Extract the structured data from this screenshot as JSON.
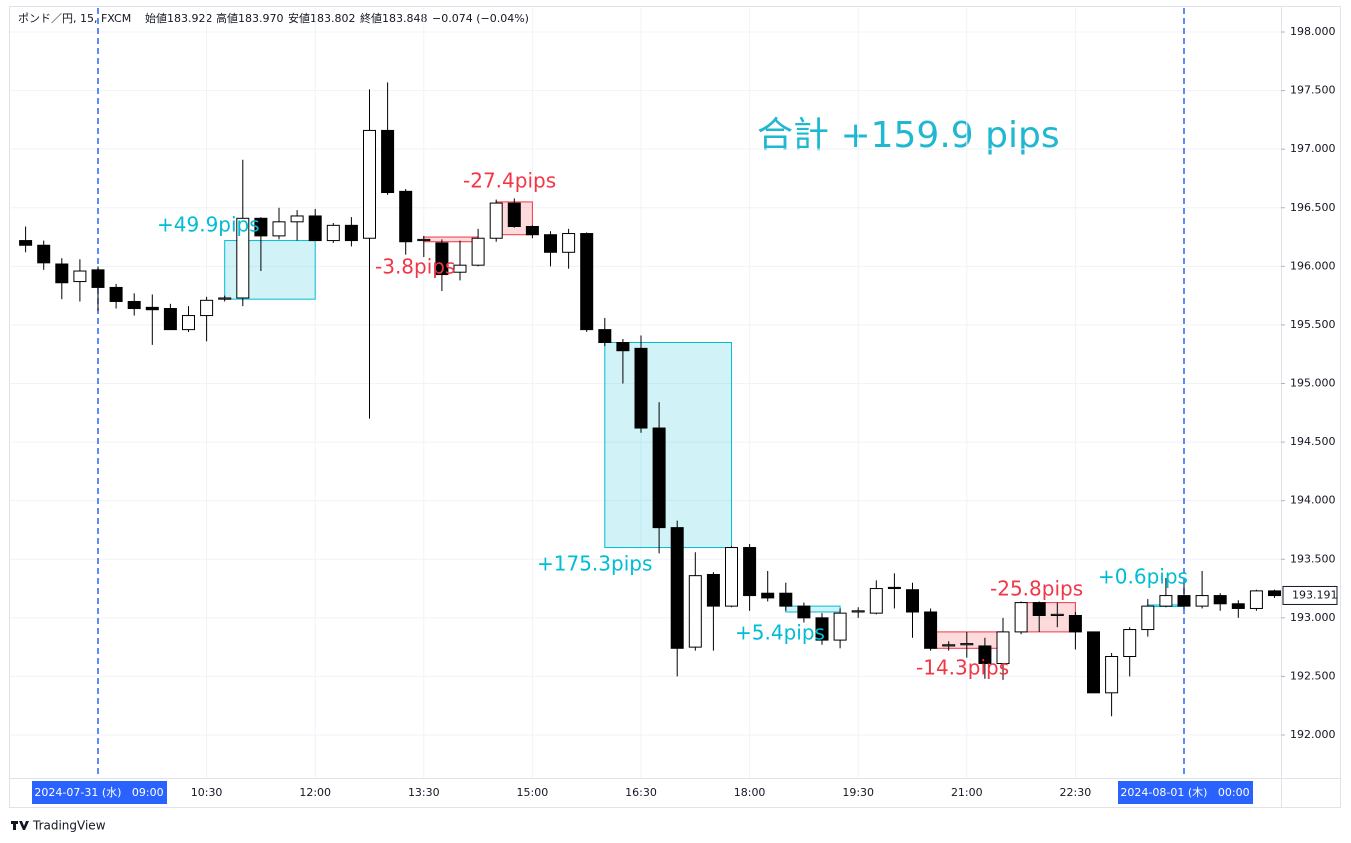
{
  "chart_data": {
    "type": "candlestick",
    "header": [
      "ポンド／円, 15, FXCM",
      "始値183.922",
      "高値183.970",
      "安値183.802",
      "終値183.848",
      "−0.074 (−0.04%)"
    ],
    "title": "合計 +159.9 pips",
    "footer": "TradingView",
    "categories": [
      null,
      null,
      null,
      null,
      "2024-07-31 (水)   09:00",
      null,
      null,
      null,
      null,
      null,
      "10:30",
      null,
      null,
      null,
      null,
      null,
      "12:00",
      null,
      null,
      null,
      null,
      null,
      "13:30",
      null,
      null,
      null,
      null,
      null,
      "15:00",
      null,
      null,
      null,
      null,
      null,
      "16:30",
      null,
      null,
      null,
      null,
      null,
      "18:00",
      null,
      null,
      null,
      null,
      null,
      "19:30",
      null,
      null,
      null,
      null,
      null,
      "21:00",
      null,
      null,
      null,
      null,
      null,
      "22:30",
      null,
      null,
      null,
      null,
      null,
      "2024-08-01 (木)   00:00",
      null,
      null,
      null,
      null,
      null
    ],
    "open": [
      196.22,
      196.18,
      196.02,
      195.87,
      195.97,
      195.82,
      195.7,
      195.65,
      195.64,
      195.46,
      195.58,
      195.72,
      195.73,
      196.41,
      196.26,
      196.38,
      196.43,
      196.22,
      196.35,
      196.24,
      197.16,
      196.64,
      196.22,
      196.2,
      195.95,
      196.01,
      196.24,
      196.54,
      196.34,
      196.27,
      196.12,
      196.28,
      195.46,
      195.35,
      195.3,
      194.62,
      193.77,
      192.75,
      193.37,
      193.1,
      193.6,
      193.21,
      193.21,
      193.1,
      193.0,
      192.81,
      193.05,
      193.04,
      193.26,
      193.24,
      193.05,
      192.76,
      192.77,
      192.76,
      192.61,
      192.88,
      193.13,
      193.02,
      193.02,
      192.88,
      192.36,
      192.67,
      192.9,
      193.1,
      193.19,
      193.1,
      193.19,
      193.12,
      193.08,
      193.23
    ],
    "high": [
      196.34,
      196.22,
      196.07,
      196.06,
      196.0,
      195.85,
      195.77,
      195.76,
      195.68,
      195.66,
      195.74,
      195.75,
      196.91,
      196.42,
      196.5,
      196.48,
      196.49,
      196.37,
      196.42,
      197.51,
      197.57,
      196.66,
      196.26,
      196.23,
      196.22,
      196.32,
      196.57,
      196.58,
      196.35,
      196.3,
      196.32,
      196.29,
      195.56,
      195.38,
      195.41,
      194.84,
      193.83,
      193.56,
      193.39,
      193.61,
      193.63,
      193.4,
      193.3,
      193.13,
      193.04,
      193.08,
      193.09,
      193.32,
      193.38,
      193.3,
      193.08,
      192.8,
      192.88,
      192.83,
      193.0,
      193.14,
      193.14,
      193.13,
      193.05,
      192.88,
      192.7,
      192.92,
      193.16,
      193.34,
      193.3,
      193.4,
      193.21,
      193.15,
      193.24,
      193.24
    ],
    "low": [
      196.12,
      195.97,
      195.72,
      195.7,
      195.62,
      195.64,
      195.58,
      195.33,
      195.46,
      195.44,
      195.36,
      195.7,
      195.66,
      195.96,
      196.23,
      196.22,
      196.22,
      196.2,
      196.17,
      194.7,
      196.61,
      196.1,
      196.08,
      195.79,
      195.88,
      196.0,
      196.21,
      196.33,
      196.24,
      196.0,
      195.98,
      195.44,
      195.32,
      195.0,
      194.58,
      193.55,
      192.5,
      192.72,
      192.72,
      193.09,
      193.06,
      193.14,
      193.06,
      192.96,
      192.77,
      192.74,
      193.0,
      193.03,
      193.08,
      192.83,
      192.72,
      192.72,
      192.66,
      192.48,
      192.47,
      192.86,
      192.88,
      192.92,
      192.73,
      192.36,
      192.16,
      192.5,
      192.84,
      193.09,
      193.08,
      193.08,
      193.06,
      193.0,
      193.06,
      193.17
    ],
    "close": [
      196.18,
      196.03,
      195.86,
      195.96,
      195.82,
      195.7,
      195.64,
      195.63,
      195.46,
      195.58,
      195.71,
      195.73,
      196.41,
      196.26,
      196.38,
      196.43,
      196.22,
      196.35,
      196.22,
      197.16,
      196.63,
      196.21,
      196.23,
      195.93,
      196.01,
      196.24,
      196.54,
      196.34,
      196.27,
      196.12,
      196.28,
      195.46,
      195.35,
      195.28,
      194.62,
      193.77,
      192.74,
      193.36,
      193.1,
      193.6,
      193.19,
      193.17,
      193.1,
      193.0,
      192.81,
      193.04,
      193.06,
      193.25,
      193.25,
      193.05,
      192.74,
      192.77,
      192.78,
      192.61,
      192.88,
      193.13,
      193.02,
      193.03,
      192.88,
      192.36,
      192.67,
      192.9,
      193.1,
      193.19,
      193.1,
      193.19,
      193.12,
      193.08,
      193.23,
      193.19
    ],
    "up_color": "#ffffff",
    "down_color": "#000000",
    "ylim": [
      191.633,
      198.205
    ],
    "yticks": [
      {
        "value": 192,
        "label": "192.000"
      },
      {
        "value": 192.5,
        "label": "192.500"
      },
      {
        "value": 193,
        "label": "193.000"
      },
      {
        "value": 193.5,
        "label": "193.500"
      },
      {
        "value": 194,
        "label": "194.000"
      },
      {
        "value": 194.5,
        "label": "194.500"
      },
      {
        "value": 195,
        "label": "195.000"
      },
      {
        "value": 195.5,
        "label": "195.500"
      },
      {
        "value": 196,
        "label": "196.000"
      },
      {
        "value": 196.5,
        "label": "196.500"
      },
      {
        "value": 197,
        "label": "197.000"
      },
      {
        "value": 197.5,
        "label": "197.500"
      },
      {
        "value": 198,
        "label": "198.000"
      }
    ],
    "last_price": {
      "value": 193.191,
      "label": "193.191"
    },
    "grid": true,
    "annotations": [
      {
        "label": "+49.9pips",
        "start": 11,
        "end": 16,
        "top": 196.22,
        "bottom": 195.72,
        "color": "#00bcd4"
      },
      {
        "label": "-3.8pips",
        "start": 22,
        "end": 25,
        "top": 196.25,
        "bottom": 196.21,
        "color": "#f23645"
      },
      {
        "label": "-27.4pips",
        "start": 26,
        "end": 28,
        "top": 196.55,
        "bottom": 196.27,
        "color": "#f23645"
      },
      {
        "label": "+175.3pips",
        "start": 32,
        "end": 39,
        "top": 195.35,
        "bottom": 193.6,
        "color": "#00bcd4"
      },
      {
        "label": "+5.4pips",
        "start": 42,
        "end": 45,
        "top": 193.1,
        "bottom": 193.05,
        "color": "#00bcd4"
      },
      {
        "label": "-14.3pips",
        "start": 50,
        "end": 54,
        "top": 192.88,
        "bottom": 192.74,
        "color": "#f23645"
      },
      {
        "label": "-25.8pips",
        "start": 55,
        "end": 58,
        "top": 193.13,
        "bottom": 192.88,
        "color": "#f23645"
      },
      {
        "label": "+0.6pips",
        "start": 62,
        "end": 64,
        "top": 193.11,
        "bottom": 193.1,
        "color": "#00bcd4"
      }
    ]
  }
}
